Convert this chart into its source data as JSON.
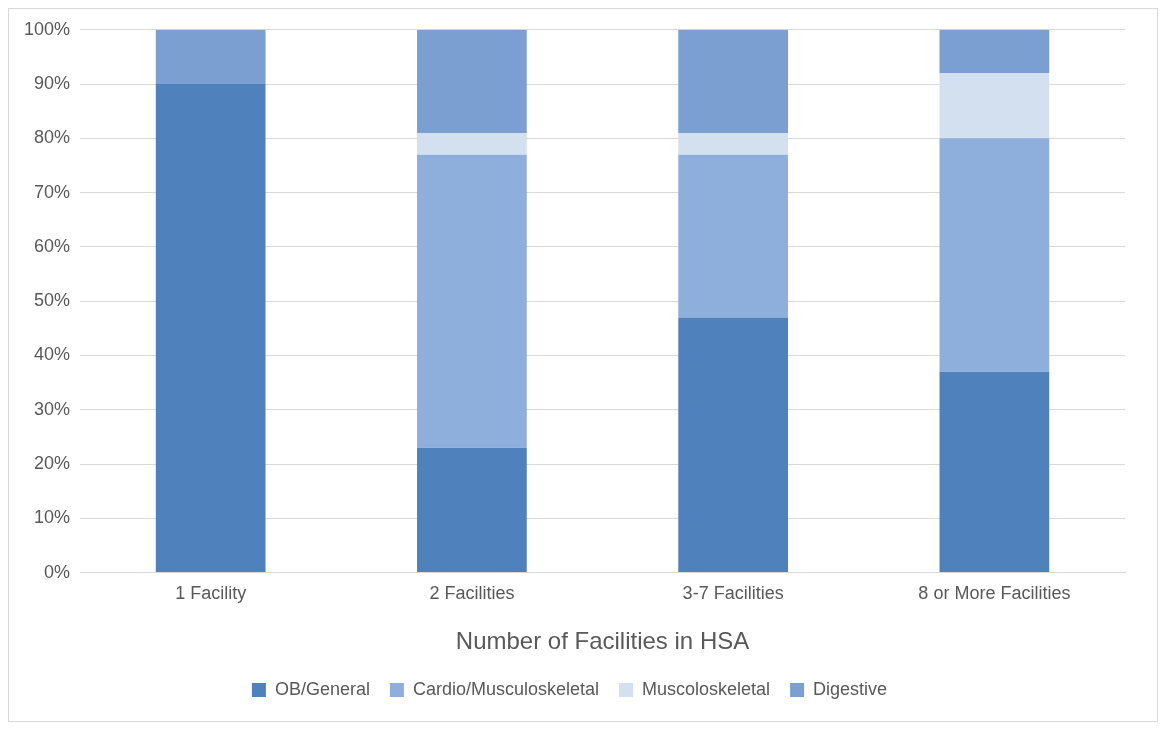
{
  "chart_data": {
    "type": "bar",
    "stacked": true,
    "xlabel": "Number of Facilities in HSA",
    "categories": [
      "1 Facility",
      "2 Facilities",
      "3-7 Facilities",
      "8 or More Facilities"
    ],
    "series": [
      {
        "name": "OB/General",
        "color": "#4f81bd",
        "values": [
          90,
          23,
          47,
          37
        ]
      },
      {
        "name": "Cardio/Musculoskeletal",
        "color": "#8eaedb",
        "values": [
          0,
          54,
          30,
          43
        ]
      },
      {
        "name": "Muscoloskeletal",
        "color": "#d3e0f0",
        "values": [
          0,
          4,
          4,
          12
        ]
      },
      {
        "name": "Digestive",
        "color": "#7a9fd0",
        "values": [
          10,
          19,
          19,
          8
        ]
      }
    ],
    "ylim": [
      0,
      100
    ],
    "yticks": [
      {
        "value": 0,
        "label": "0%"
      },
      {
        "value": 10,
        "label": "10%"
      },
      {
        "value": 20,
        "label": "20%"
      },
      {
        "value": 30,
        "label": "30%"
      },
      {
        "value": 40,
        "label": "40%"
      },
      {
        "value": 50,
        "label": "50%"
      },
      {
        "value": 60,
        "label": "60%"
      },
      {
        "value": 70,
        "label": "70%"
      },
      {
        "value": 80,
        "label": "80%"
      },
      {
        "value": 90,
        "label": "90%"
      },
      {
        "value": 100,
        "label": "100%"
      }
    ],
    "grid": "y",
    "legend": "bottom"
  }
}
